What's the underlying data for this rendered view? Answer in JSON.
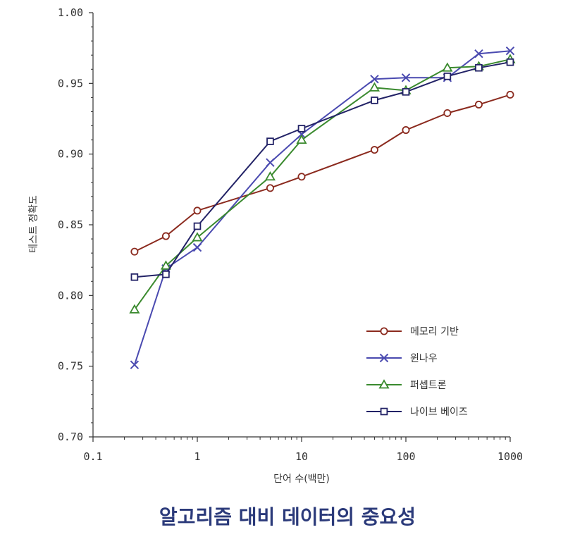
{
  "caption": "알고리즘 대비 데이터의 중요성",
  "chart_data": {
    "type": "line",
    "title": "",
    "xlabel": "단어 수(백만)",
    "ylabel": "테스트 정확도",
    "xscale": "log",
    "xlim": [
      0.1,
      1000
    ],
    "ylim": [
      0.7,
      1.0
    ],
    "xticks": [
      "0.1",
      "1",
      "10",
      "100",
      "1000"
    ],
    "yticks": [
      "0.70",
      "0.75",
      "0.80",
      "0.85",
      "0.90",
      "0.95",
      "1.00"
    ],
    "grid": false,
    "legend_position": "bottom-right",
    "series": [
      {
        "name": "메모리 기반",
        "color": "#8b2a1e",
        "marker": "circle",
        "x": [
          0.25,
          0.5,
          1,
          5,
          10,
          50,
          100,
          250,
          500,
          1000
        ],
        "y": [
          0.831,
          0.842,
          0.86,
          0.876,
          0.884,
          0.903,
          0.917,
          0.929,
          0.935,
          0.942
        ]
      },
      {
        "name": "윈나우",
        "color": "#4a4ab0",
        "marker": "x",
        "x": [
          0.25,
          0.5,
          1,
          5,
          10,
          50,
          100,
          250,
          500,
          1000
        ],
        "y": [
          0.751,
          0.819,
          0.834,
          0.894,
          0.914,
          0.953,
          0.954,
          0.954,
          0.971,
          0.973
        ]
      },
      {
        "name": "퍼셉트론",
        "color": "#3a8a2e",
        "marker": "triangle",
        "x": [
          0.25,
          0.5,
          1,
          5,
          10,
          50,
          100,
          250,
          500,
          1000
        ],
        "y": [
          0.79,
          0.821,
          0.841,
          0.884,
          0.91,
          0.947,
          0.945,
          0.961,
          0.962,
          0.967
        ]
      },
      {
        "name": "나이브 베이즈",
        "color": "#222266",
        "marker": "square",
        "x": [
          0.25,
          0.5,
          1,
          5,
          10,
          50,
          100,
          250,
          500,
          1000
        ],
        "y": [
          0.813,
          0.815,
          0.849,
          0.909,
          0.918,
          0.938,
          0.944,
          0.955,
          0.961,
          0.965
        ]
      }
    ]
  }
}
